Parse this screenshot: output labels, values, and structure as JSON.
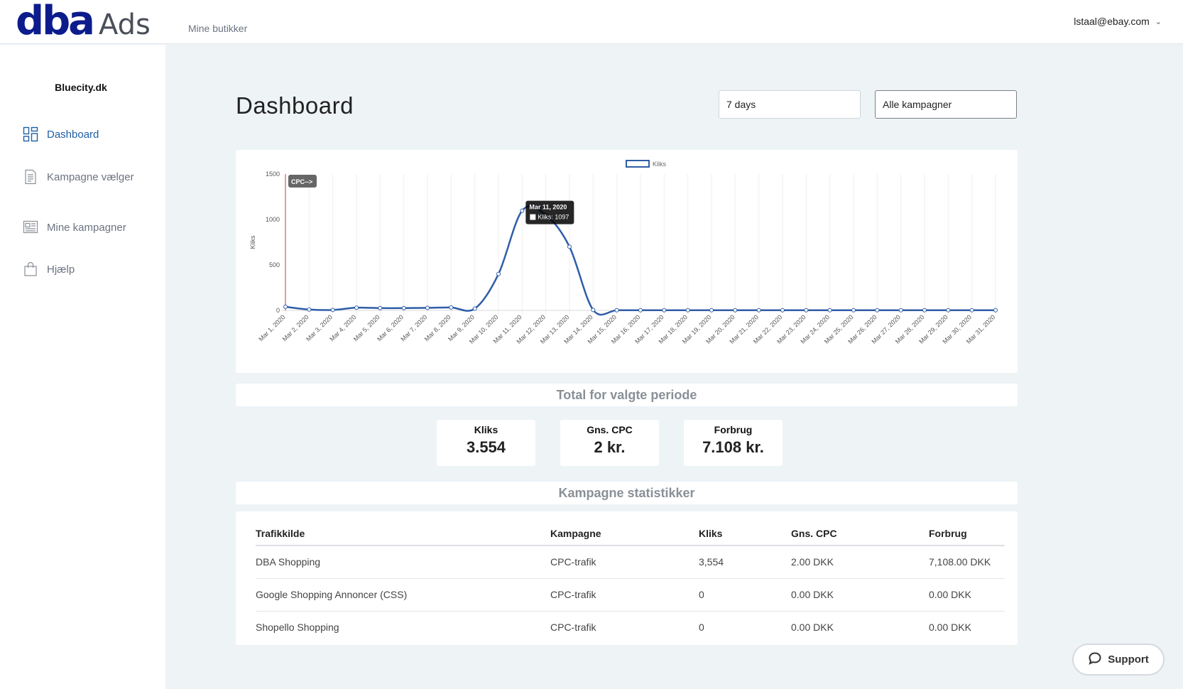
{
  "header": {
    "logo_dba": "dba",
    "logo_ads": "Ads",
    "nav_label": "Mine butikker",
    "user_email": "lstaal@ebay.com"
  },
  "sidebar": {
    "shop_name": "Bluecity.dk",
    "items": [
      {
        "label": "Dashboard",
        "icon": "dashboard-icon",
        "active": true
      },
      {
        "label": "Kampagne vælger",
        "icon": "document-list-icon",
        "active": false
      },
      {
        "label": "Mine kampagner",
        "icon": "newspaper-icon",
        "active": false
      },
      {
        "label": "Hjælp",
        "icon": "shopping-bag-icon",
        "active": false
      }
    ]
  },
  "main": {
    "title": "Dashboard",
    "period_select": "7 days",
    "campaign_select": "Alle kampagner",
    "totals_heading": "Total for valgte periode",
    "stats": [
      {
        "label": "Kliks",
        "value": "3.554"
      },
      {
        "label": "Gns. CPC",
        "value": "2 kr."
      },
      {
        "label": "Forbrug",
        "value": "7.108 kr."
      }
    ],
    "campaign_heading": "Kampagne statistikker",
    "table": {
      "headers": [
        "Trafikkilde",
        "Kampagne",
        "Kliks",
        "Gns. CPC",
        "Forbrug"
      ],
      "rows": [
        [
          "DBA Shopping",
          "CPC-trafik",
          "3,554",
          "2.00 DKK",
          "7,108.00 DKK"
        ],
        [
          "Google Shopping Annoncer (CSS)",
          "CPC-trafik",
          "0",
          "0.00 DKK",
          "0.00 DKK"
        ],
        [
          "Shopello Shopping",
          "CPC-trafik",
          "0",
          "0.00 DKK",
          "0.00 DKK"
        ]
      ]
    },
    "support_label": "Support"
  },
  "chart_data": {
    "type": "line",
    "legend": "Kliks",
    "ylabel": "Kliks",
    "ylim": [
      0,
      1500
    ],
    "yticks": [
      0,
      500,
      1000,
      1500
    ],
    "x": [
      "Mar 1, 2020",
      "Mar 2, 2020",
      "Mar 3, 2020",
      "Mar 4, 2020",
      "Mar 5, 2020",
      "Mar 6, 2020",
      "Mar 7, 2020",
      "Mar 8, 2020",
      "Mar 9, 2020",
      "Mar 10, 2020",
      "Mar 11, 2020",
      "Mar 12, 2020",
      "Mar 13, 2020",
      "Mar 14, 2020",
      "Mar 15, 2020",
      "Mar 16, 2020",
      "Mar 17, 2020",
      "Mar 18, 2020",
      "Mar 19, 2020",
      "Mar 20, 2020",
      "Mar 21, 2020",
      "Mar 22, 2020",
      "Mar 23, 2020",
      "Mar 24, 2020",
      "Mar 25, 2020",
      "Mar 26, 2020",
      "Mar 27, 2020",
      "Mar 28, 2020",
      "Mar 29, 2020",
      "Mar 30, 2020",
      "Mar 31, 2020"
    ],
    "series": [
      {
        "name": "Kliks",
        "color": "#2f5da8",
        "values": [
          40,
          10,
          5,
          30,
          25,
          25,
          28,
          32,
          20,
          400,
          1097,
          1050,
          700,
          5,
          2,
          2,
          2,
          2,
          2,
          2,
          2,
          2,
          2,
          2,
          2,
          2,
          2,
          2,
          2,
          2,
          2
        ]
      }
    ],
    "annotation": {
      "label": "CPC-->",
      "x": "Mar 1, 2020",
      "color": "#e07b7b"
    },
    "tooltip": {
      "title": "Mar 11, 2020",
      "label": "Kliks: 1097",
      "x": "Mar 11, 2020"
    }
  }
}
